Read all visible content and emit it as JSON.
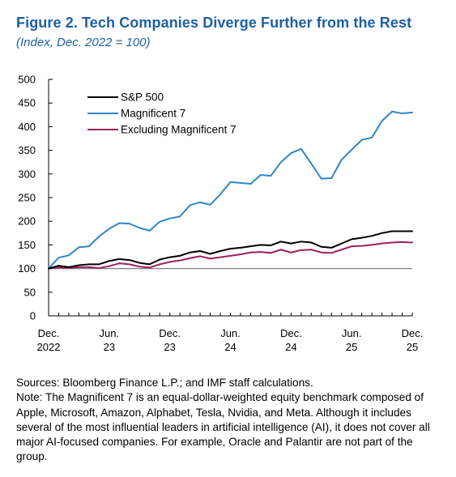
{
  "title": "Figure 2.  Tech Companies Diverge Further from the Rest",
  "subtitle": "(Index, Dec. 2022 = 100)",
  "colors": {
    "title": "#1d5fa8",
    "sp500": "#000000",
    "mag7": "#2e86c8",
    "exmag7": "#9e1f5c",
    "baseline": "#808080"
  },
  "chart_data": {
    "type": "line",
    "ylim": [
      0,
      500
    ],
    "yticks": [
      0,
      50,
      100,
      150,
      200,
      250,
      300,
      350,
      400,
      450,
      500
    ],
    "xlim": [
      0,
      36
    ],
    "xticks": [
      {
        "pos": 0,
        "line1": "Dec.",
        "line2": "2022"
      },
      {
        "pos": 6,
        "line1": "Jun.",
        "line2": "23"
      },
      {
        "pos": 12,
        "line1": "Dec.",
        "line2": "23"
      },
      {
        "pos": 18,
        "line1": "Jun.",
        "line2": "24"
      },
      {
        "pos": 24,
        "line1": "Dec.",
        "line2": "24"
      },
      {
        "pos": 30,
        "line1": "Jun.",
        "line2": "25"
      },
      {
        "pos": 36,
        "line1": "Dec.",
        "line2": "25"
      }
    ],
    "reference_line": 100,
    "legend_position": "top-left",
    "x": [
      0,
      1,
      2,
      3,
      4,
      5,
      6,
      7,
      8,
      9,
      10,
      11,
      12,
      13,
      14,
      15,
      16,
      17,
      18,
      19,
      20,
      21,
      22,
      23,
      24,
      25,
      26,
      27,
      28,
      29,
      30,
      31,
      32,
      33,
      34,
      35,
      36
    ],
    "series": [
      {
        "name": "S&P 500",
        "key": "sp500",
        "values": [
          100,
          106,
          103,
          107,
          109,
          109,
          116,
          120,
          118,
          112,
          109,
          119,
          124,
          127,
          134,
          137,
          131,
          137,
          142,
          144,
          147,
          150,
          149,
          157,
          153,
          157,
          155,
          146,
          144,
          153,
          162,
          165,
          169,
          175,
          179,
          179,
          179
        ]
      },
      {
        "name": "Magnificent 7",
        "key": "mag7",
        "values": [
          100,
          123,
          128,
          145,
          147,
          168,
          184,
          196,
          195,
          186,
          180,
          199,
          206,
          210,
          234,
          240,
          235,
          257,
          283,
          281,
          279,
          298,
          296,
          325,
          344,
          353,
          322,
          290,
          291,
          330,
          351,
          372,
          377,
          412,
          432,
          428,
          430
        ]
      },
      {
        "name": "Excluding Magnificent 7",
        "key": "exmag7",
        "values": [
          100,
          102,
          101,
          103,
          103,
          101,
          105,
          111,
          109,
          104,
          102,
          109,
          114,
          117,
          122,
          126,
          121,
          124,
          127,
          130,
          134,
          135,
          133,
          140,
          134,
          139,
          140,
          134,
          133,
          140,
          147,
          148,
          150,
          153,
          155,
          156,
          155
        ]
      }
    ]
  },
  "notes": {
    "sources": "Sources: Bloomberg Finance L.P.; and IMF staff calculations.",
    "note": "Note: The Magnificent 7 is an equal-dollar-weighted equity benchmark composed of Apple, Microsoft, Amazon, Alphabet, Tesla, Nvidia, and Meta. Although it includes several of the most influential leaders in artificial intelligence (AI), it does not cover all major AI-focused companies. For example, Oracle and Palantir are not part of the group."
  }
}
